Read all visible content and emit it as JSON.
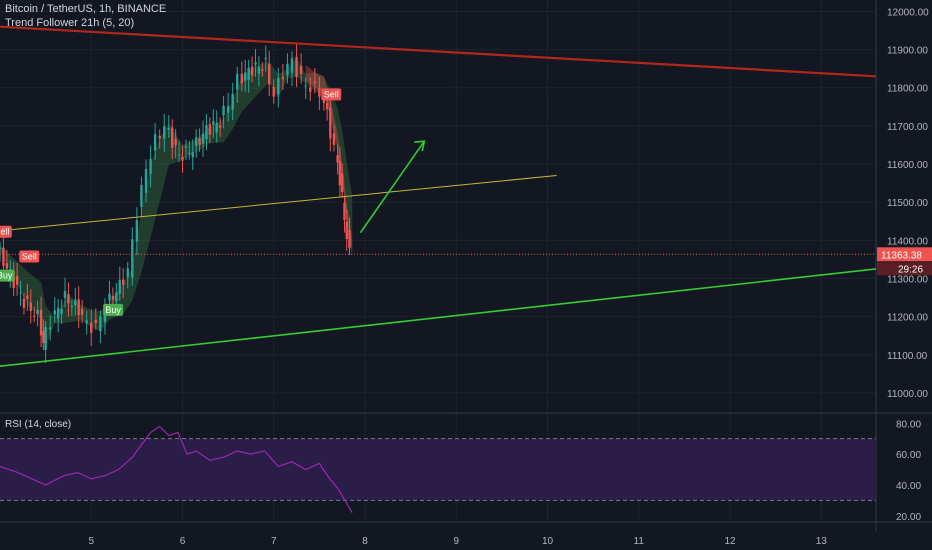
{
  "header": {
    "symbol_line": "Bitcoin / TetherUS, 1h, BINANCE",
    "indicator_line": "Trend Follower 21h (5, 20)"
  },
  "rsi_panel": {
    "label": "RSI (14, close)"
  },
  "colors": {
    "background": "#131722",
    "up": "#26a69a",
    "down": "#ef5350",
    "resistance": "#b2271b",
    "support": "#33cc33",
    "midline": "#c8b638",
    "rsi": "#9c27b0",
    "rsi_band": "#2a1d47",
    "signal_buy": "#4caf50",
    "signal_sell": "#ef5350"
  },
  "chart_data": [
    {
      "type": "candlestick",
      "title": "Bitcoin / TetherUS, 1h, BINANCE",
      "x_ticks": [
        "5",
        "6",
        "7",
        "8",
        "9",
        "10",
        "11",
        "12",
        "13"
      ],
      "y_ticks": [
        "12000.00",
        "11900.00",
        "11800.00",
        "11700.00",
        "11600.00",
        "11500.00",
        "11400.00",
        "11300.00",
        "11200.00",
        "11100.00",
        "11000.00"
      ],
      "ylim": [
        10950,
        12030
      ],
      "xlim": [
        4.0,
        13.6
      ],
      "last_price_label": "11363.38",
      "last_price": 11363.38,
      "countdown_label": "29:26",
      "price_path": [
        [
          4.0,
          11380
        ],
        [
          4.15,
          11310
        ],
        [
          4.3,
          11240
        ],
        [
          4.45,
          11200
        ],
        [
          4.5,
          11130
        ],
        [
          4.6,
          11190
        ],
        [
          4.75,
          11250
        ],
        [
          4.9,
          11220
        ],
        [
          5.0,
          11180
        ],
        [
          5.1,
          11170
        ],
        [
          5.2,
          11230
        ],
        [
          5.35,
          11280
        ],
        [
          5.45,
          11320
        ],
        [
          5.55,
          11470
        ],
        [
          5.65,
          11590
        ],
        [
          5.75,
          11660
        ],
        [
          5.85,
          11700
        ],
        [
          6.0,
          11620
        ],
        [
          6.15,
          11640
        ],
        [
          6.3,
          11690
        ],
        [
          6.45,
          11710
        ],
        [
          6.55,
          11760
        ],
        [
          6.65,
          11820
        ],
        [
          6.8,
          11850
        ],
        [
          6.95,
          11860
        ],
        [
          7.05,
          11780
        ],
        [
          7.15,
          11840
        ],
        [
          7.25,
          11870
        ],
        [
          7.35,
          11820
        ],
        [
          7.45,
          11800
        ],
        [
          7.55,
          11790
        ],
        [
          7.62,
          11730
        ],
        [
          7.7,
          11640
        ],
        [
          7.75,
          11560
        ],
        [
          7.8,
          11460
        ],
        [
          7.86,
          11363
        ]
      ],
      "lines": [
        {
          "name": "resistance",
          "points": [
            [
              4.0,
              11960
            ],
            [
              13.6,
              11830
            ]
          ]
        },
        {
          "name": "support",
          "points": [
            [
              4.0,
              11070
            ],
            [
              13.6,
              11325
            ]
          ]
        },
        {
          "name": "midline",
          "points": [
            [
              4.0,
              11425
            ],
            [
              10.1,
              11570
            ]
          ]
        },
        {
          "name": "arrow",
          "points": [
            [
              7.95,
              11420
            ],
            [
              8.65,
              11660
            ]
          ]
        }
      ],
      "signals": [
        {
          "label": "Sell",
          "x": 4.02,
          "y": 11420
        },
        {
          "label": "Buy",
          "x": 4.05,
          "y": 11305
        },
        {
          "label": "Sell",
          "x": 4.32,
          "y": 11355
        },
        {
          "label": "Buy",
          "x": 5.24,
          "y": 11215
        },
        {
          "label": "Sell",
          "x": 7.63,
          "y": 11780
        }
      ]
    },
    {
      "type": "line",
      "title": "RSI (14, close)",
      "y_ticks": [
        "80.00",
        "60.00",
        "40.00",
        "20.00"
      ],
      "ylim": [
        16,
        86
      ],
      "band": [
        30,
        70
      ],
      "xlim": [
        4.0,
        13.6
      ],
      "series": [
        {
          "x": [
            4.0,
            4.2,
            4.35,
            4.5,
            4.6,
            4.7,
            4.85,
            5.0,
            5.15,
            5.3,
            5.45,
            5.55,
            5.65,
            5.75,
            5.85,
            5.95,
            6.05,
            6.15,
            6.3,
            6.45,
            6.6,
            6.75,
            6.9,
            7.05,
            7.2,
            7.35,
            7.5,
            7.6,
            7.7,
            7.78,
            7.86
          ],
          "values": [
            52,
            48,
            44,
            40,
            43,
            46,
            48,
            44,
            46,
            50,
            58,
            66,
            74,
            78,
            72,
            74,
            60,
            62,
            56,
            58,
            62,
            60,
            62,
            52,
            55,
            50,
            54,
            45,
            38,
            30,
            22
          ]
        }
      ]
    }
  ]
}
